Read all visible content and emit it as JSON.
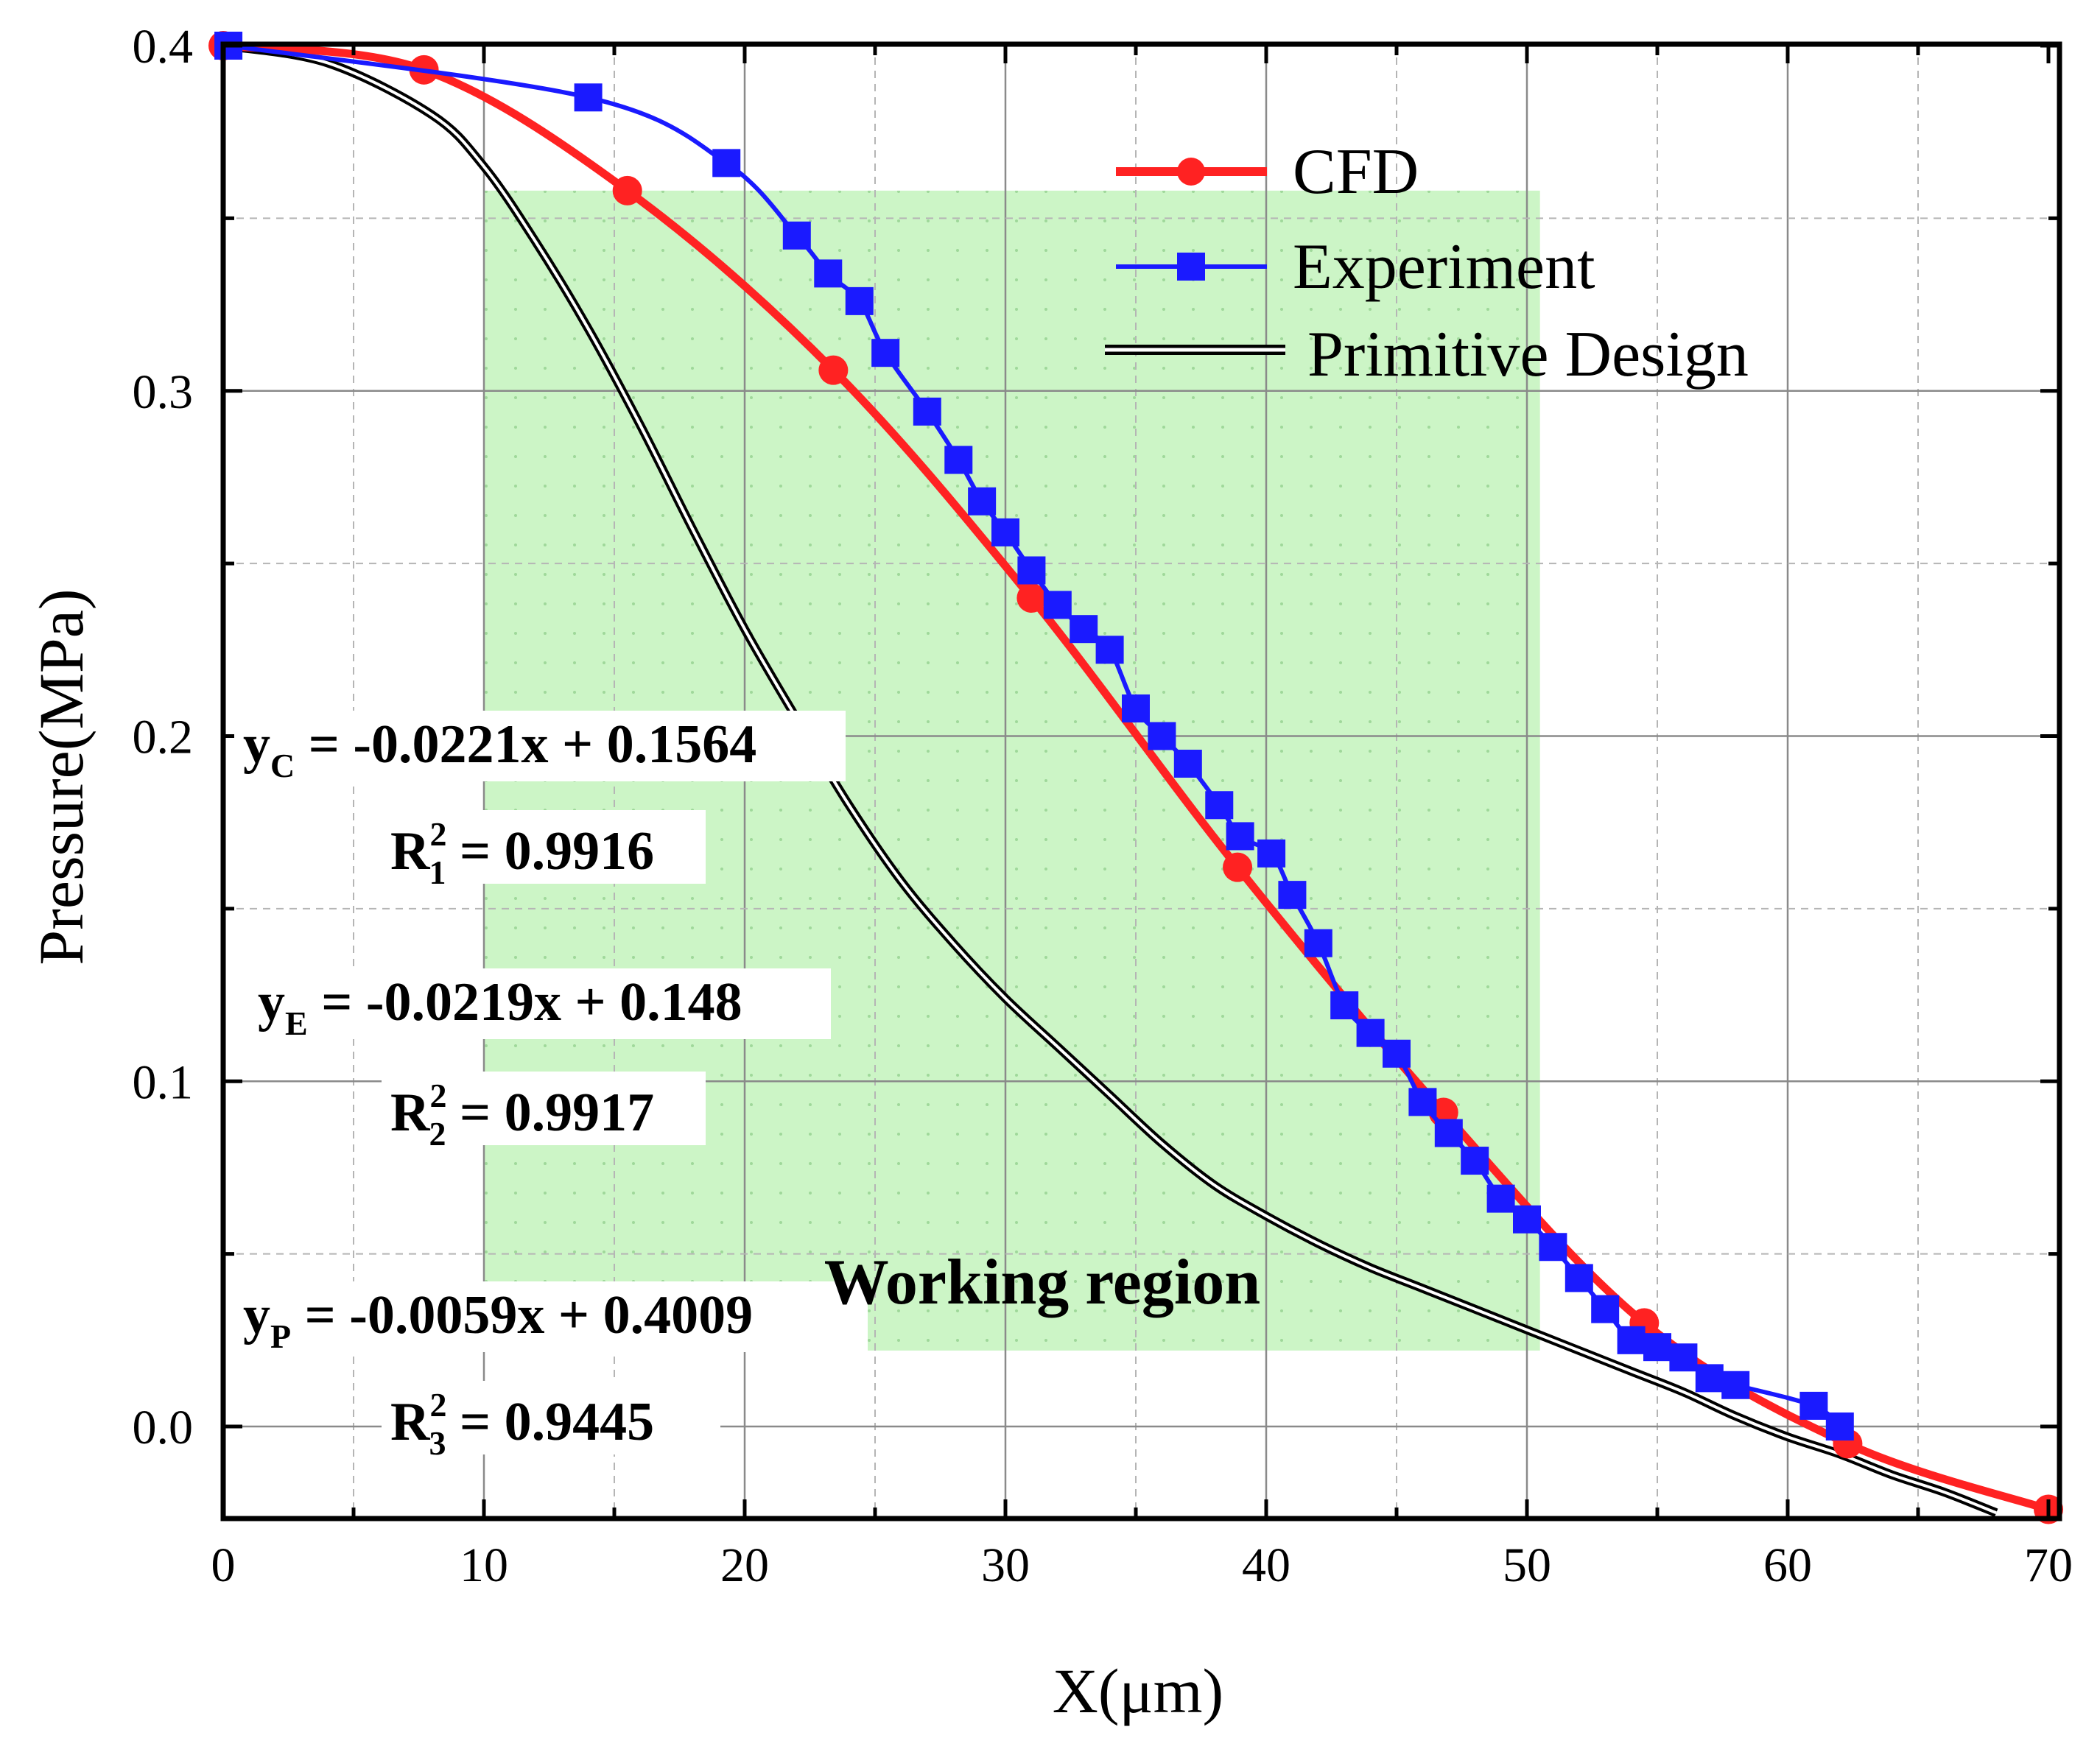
{
  "chart_data": {
    "type": "line",
    "xlabel": "X(μm)",
    "ylabel": "Pressure(MPa)",
    "xlim": [
      0,
      70
    ],
    "ylim": [
      -0.027,
      0.4
    ],
    "x_ticks": [
      0,
      10,
      20,
      30,
      40,
      50,
      60,
      70
    ],
    "x_tick_labels": [
      "0",
      "10",
      "20",
      "30",
      "40",
      "50",
      "60",
      "70"
    ],
    "y_ticks": [
      0.0,
      0.1,
      0.2,
      0.3,
      0.4
    ],
    "y_tick_labels": [
      "0.0",
      "0.1",
      "0.2",
      "0.3",
      "0.4"
    ],
    "grid": true,
    "legend_position": "top-right",
    "series": [
      {
        "name": "CFD",
        "color": "#ff2222",
        "marker": "circle",
        "points": [
          [
            0,
            0.4
          ],
          [
            7.7,
            0.393
          ],
          [
            15.5,
            0.358
          ],
          [
            23.4,
            0.306
          ],
          [
            31.0,
            0.24
          ],
          [
            38.9,
            0.162
          ],
          [
            46.8,
            0.091
          ],
          [
            54.5,
            0.03
          ],
          [
            62.3,
            -0.005
          ],
          [
            70.0,
            -0.024
          ]
        ]
      },
      {
        "name": "Experiment",
        "color": "#1a1aff",
        "marker": "square",
        "points": [
          [
            0.2,
            0.4
          ],
          [
            14.0,
            0.385
          ],
          [
            19.3,
            0.366
          ],
          [
            22.0,
            0.345
          ],
          [
            23.2,
            0.334
          ],
          [
            24.4,
            0.326
          ],
          [
            25.4,
            0.311
          ],
          [
            27.0,
            0.294
          ],
          [
            28.2,
            0.28
          ],
          [
            29.1,
            0.268
          ],
          [
            30.0,
            0.259
          ],
          [
            31.0,
            0.248
          ],
          [
            32.0,
            0.238
          ],
          [
            33.0,
            0.231
          ],
          [
            34.0,
            0.225
          ],
          [
            35.0,
            0.208
          ],
          [
            36.0,
            0.2
          ],
          [
            37.0,
            0.192
          ],
          [
            38.2,
            0.18
          ],
          [
            39.0,
            0.171
          ],
          [
            40.2,
            0.166
          ],
          [
            41.0,
            0.154
          ],
          [
            42.0,
            0.14
          ],
          [
            43.0,
            0.122
          ],
          [
            44.0,
            0.114
          ],
          [
            45.0,
            0.108
          ],
          [
            46.0,
            0.094
          ],
          [
            47.0,
            0.085
          ],
          [
            48.0,
            0.077
          ],
          [
            49.0,
            0.066
          ],
          [
            50.0,
            0.06
          ],
          [
            51.0,
            0.052
          ],
          [
            52.0,
            0.043
          ],
          [
            53.0,
            0.034
          ],
          [
            54.0,
            0.025
          ],
          [
            55.0,
            0.023
          ],
          [
            56.0,
            0.02
          ],
          [
            57.0,
            0.014
          ],
          [
            58.0,
            0.012
          ],
          [
            61.0,
            0.006
          ],
          [
            62.0,
            0.0
          ]
        ]
      },
      {
        "name": "Primitive Design",
        "color": "#000000",
        "marker": "none",
        "points": [
          [
            0,
            0.4
          ],
          [
            4,
            0.395
          ],
          [
            8,
            0.38
          ],
          [
            10,
            0.365
          ],
          [
            12,
            0.343
          ],
          [
            14,
            0.318
          ],
          [
            16,
            0.29
          ],
          [
            18,
            0.26
          ],
          [
            20,
            0.231
          ],
          [
            22,
            0.205
          ],
          [
            24,
            0.18
          ],
          [
            26,
            0.158
          ],
          [
            28,
            0.14
          ],
          [
            30,
            0.124
          ],
          [
            32,
            0.11
          ],
          [
            34,
            0.096
          ],
          [
            36,
            0.082
          ],
          [
            38,
            0.07
          ],
          [
            40,
            0.061
          ],
          [
            42,
            0.053
          ],
          [
            44,
            0.046
          ],
          [
            46,
            0.04
          ],
          [
            48,
            0.034
          ],
          [
            50,
            0.028
          ],
          [
            52,
            0.022
          ],
          [
            54,
            0.016
          ],
          [
            56,
            0.01
          ],
          [
            58,
            0.003
          ],
          [
            60,
            -0.003
          ],
          [
            62,
            -0.008
          ],
          [
            64,
            -0.014
          ],
          [
            66,
            -0.019
          ],
          [
            68,
            -0.025
          ]
        ]
      }
    ],
    "shaded_region": {
      "label": "Working region",
      "x_range": [
        10,
        50.5
      ],
      "y_range": [
        0.022,
        0.358
      ]
    },
    "equations": [
      {
        "y": "y",
        "sub": "C",
        "rhs": " = -0.0221x + 0.1564",
        "r": "R",
        "rsup": "2",
        "rsub": "1",
        "rval": " = 0.9916"
      },
      {
        "y": "y",
        "sub": "E",
        "rhs": " = -0.0219x + 0.148",
        "r": "R",
        "rsup": "2",
        "rsub": "2",
        "rval": " = 0.9917"
      },
      {
        "y": "y",
        "sub": "P",
        "rhs": " = -0.0059x + 0.4009",
        "r": "R",
        "rsup": "2",
        "rsub": "3",
        "rval": " = 0.9445"
      }
    ]
  }
}
